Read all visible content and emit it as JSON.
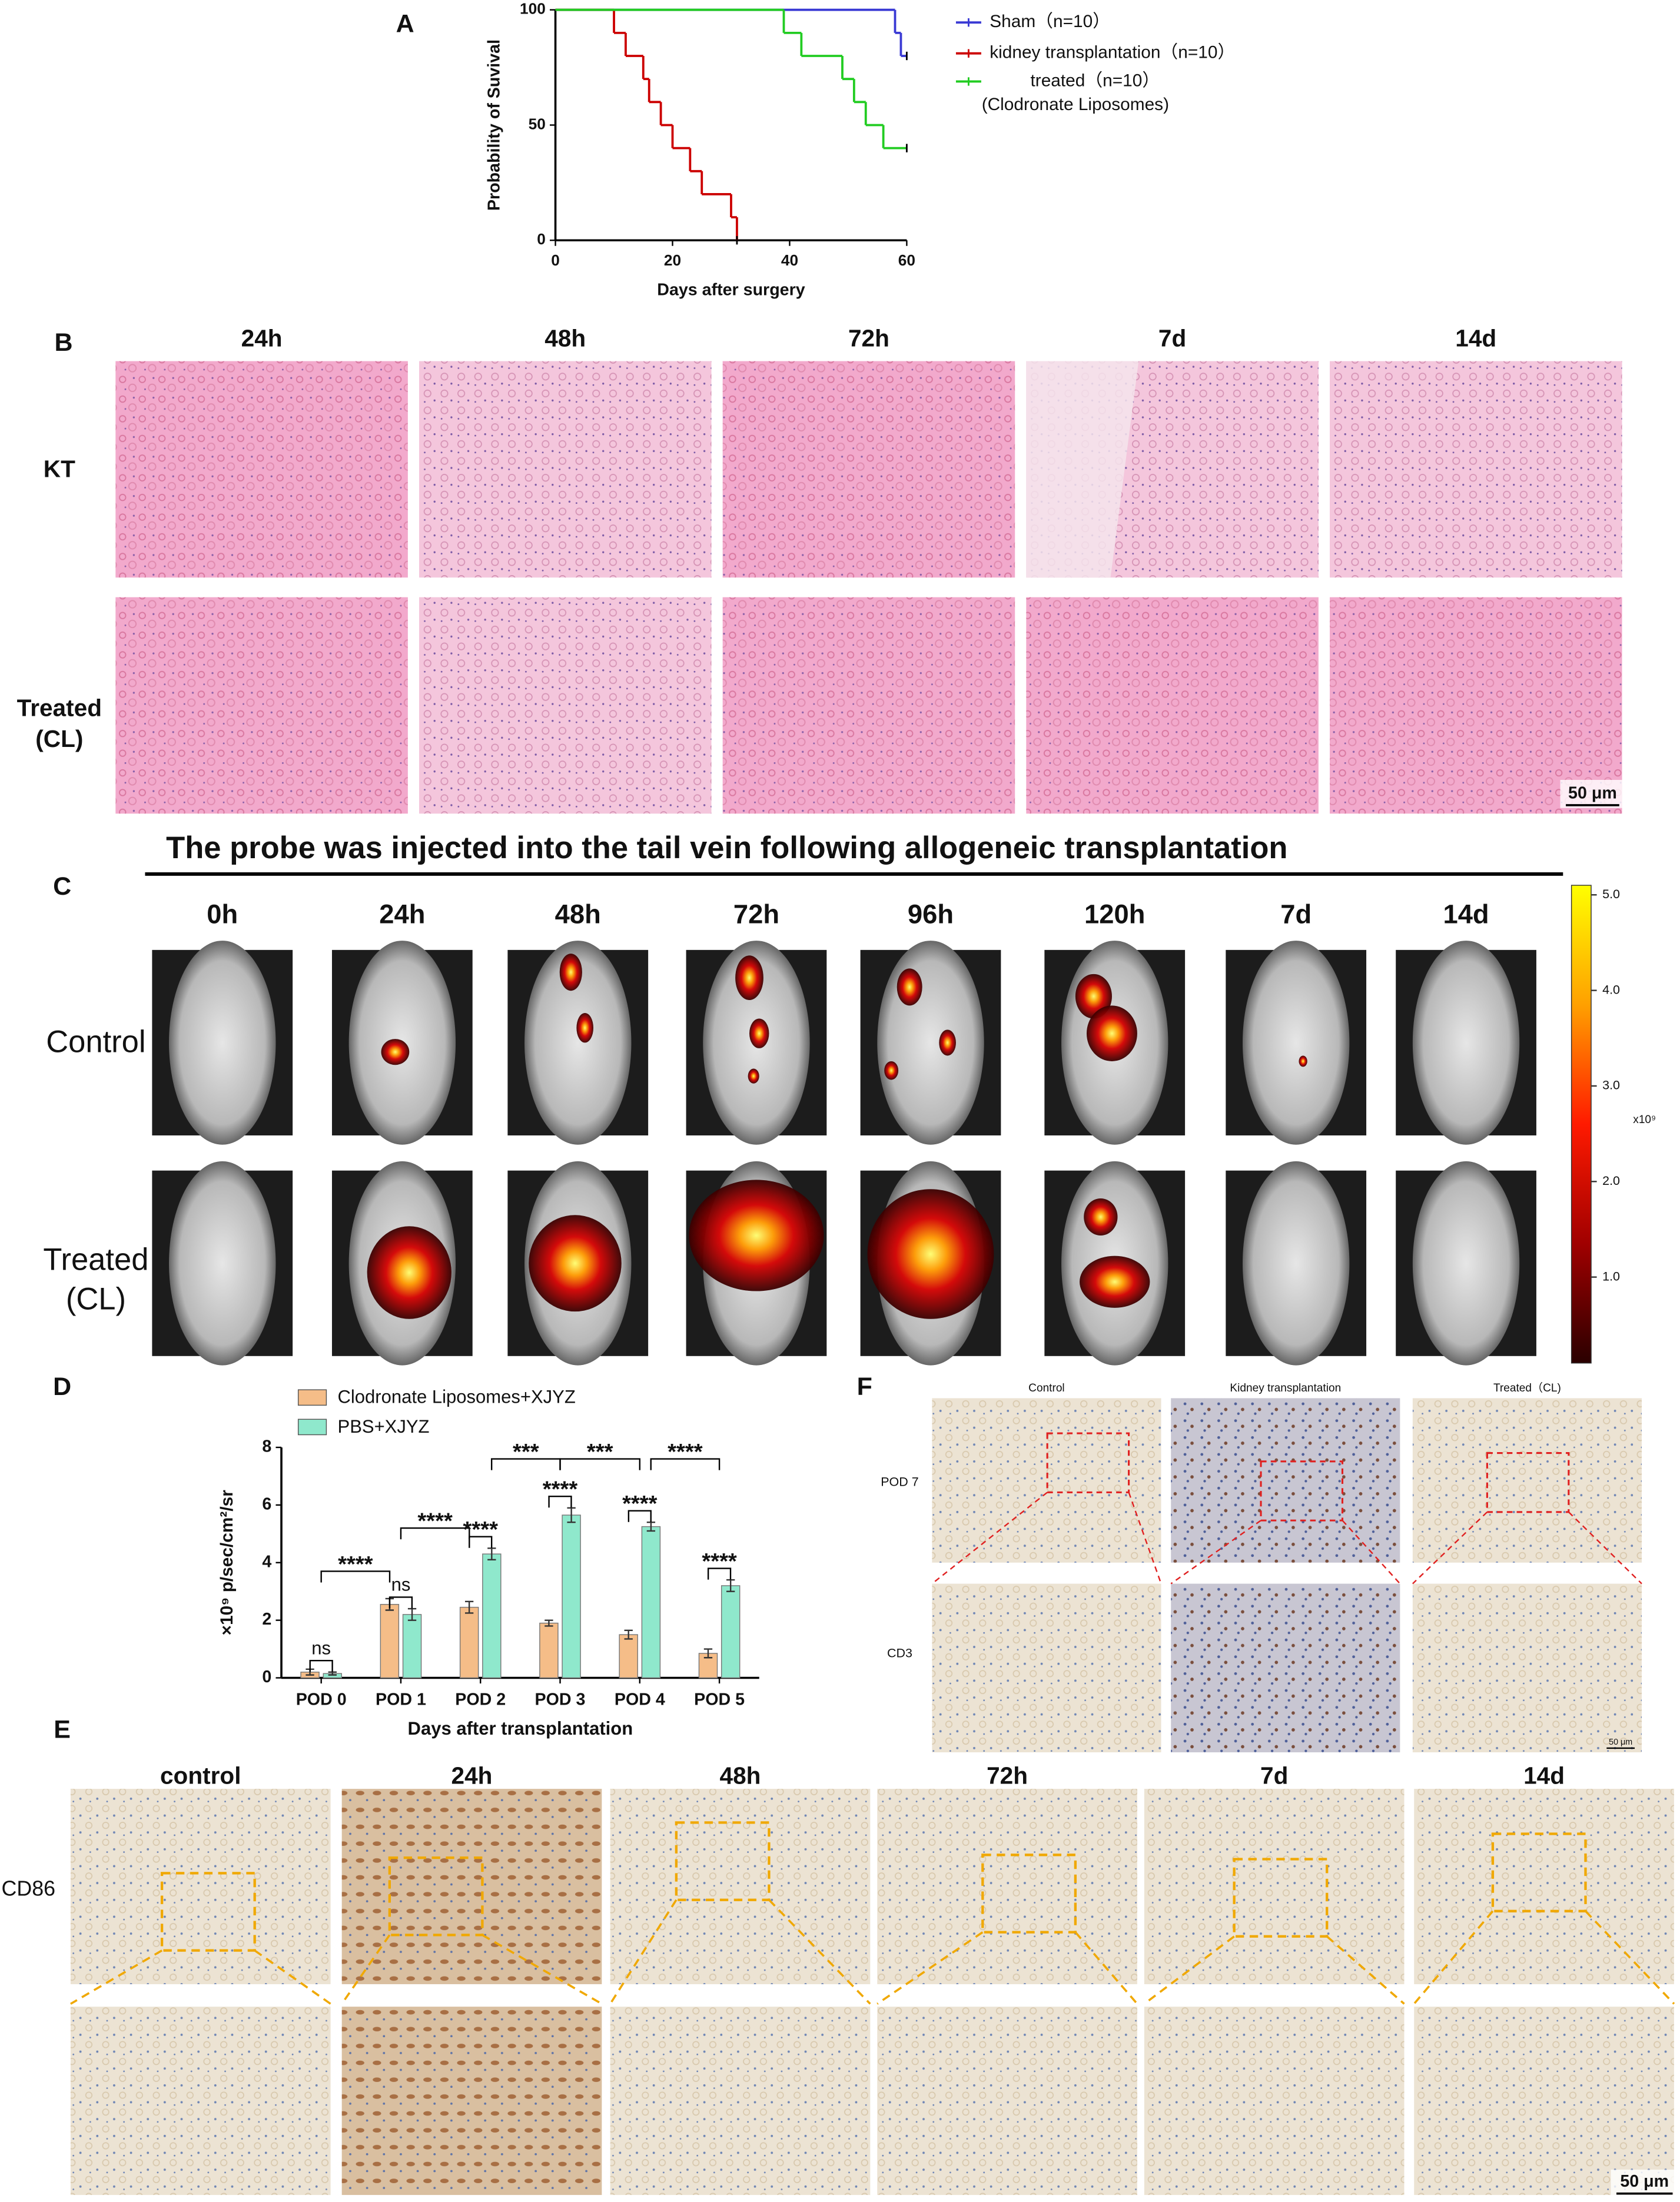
{
  "chart_data": [
    {
      "type": "step",
      "panel_label": "A",
      "xlabel": "Days after surgery",
      "ylabel": "Probability of Suvival",
      "xlim": [
        0,
        60
      ],
      "xticks": [
        0,
        20,
        40,
        60
      ],
      "ylim": [
        0,
        100
      ],
      "yticks": [
        0,
        50,
        100
      ],
      "legend_note": "(Clodronate Liposomes)",
      "series": [
        {
          "name": "Sham（n=10）",
          "color": "#3a3ad4",
          "x": [
            0,
            58,
            59,
            60
          ],
          "values": [
            100,
            90,
            80,
            80
          ]
        },
        {
          "name": "kidney transplantation（n=10）",
          "color": "#cc0000",
          "x": [
            0,
            10,
            12,
            15,
            16,
            18,
            20,
            23,
            25,
            30,
            31
          ],
          "values": [
            100,
            90,
            80,
            70,
            60,
            50,
            40,
            30,
            20,
            10,
            0
          ]
        },
        {
          "name": "treated（n=10）",
          "color": "#22cc22",
          "x": [
            0,
            39,
            42,
            49,
            51,
            53,
            56,
            60
          ],
          "values": [
            100,
            90,
            80,
            70,
            60,
            50,
            40,
            40
          ]
        }
      ]
    },
    {
      "type": "bar",
      "panel_label": "D",
      "xlabel": "Days after transplantation",
      "ylabel": "×10⁹ p/sec/cm²/sr",
      "categories": [
        "POD 0",
        "POD 1",
        "POD 2",
        "POD 3",
        "POD 4",
        "POD 5"
      ],
      "ylim": [
        0,
        8
      ],
      "yticks": [
        0,
        2,
        4,
        6,
        8
      ],
      "series": [
        {
          "name": "Clodronate Liposomes+XJYZ",
          "color": "#f5bd88",
          "values": [
            0.2,
            2.55,
            2.45,
            1.9,
            1.5,
            0.85
          ],
          "errors": [
            0.1,
            0.2,
            0.2,
            0.1,
            0.15,
            0.15
          ]
        },
        {
          "name": "PBS+XJYZ",
          "color": "#8fe8cc",
          "values": [
            0.15,
            2.2,
            4.3,
            5.65,
            5.25,
            3.2
          ],
          "errors": [
            0.05,
            0.2,
            0.2,
            0.25,
            0.15,
            0.2
          ]
        }
      ],
      "annotations": [
        "ns",
        "****",
        "ns",
        "****",
        "****",
        "***",
        "****",
        "***",
        "****",
        "****",
        "****"
      ]
    }
  ],
  "panel_b": {
    "letter": "B",
    "columns": [
      "24h",
      "48h",
      "72h",
      "7d",
      "14d"
    ],
    "rows": [
      [
        "KT"
      ],
      [
        "Treated",
        "(CL)"
      ]
    ],
    "scale_bar": "50 μm"
  },
  "panel_c": {
    "letter": "C",
    "title": "The probe was injected into the tail vein following allogeneic transplantation",
    "columns": [
      "0h",
      "24h",
      "48h",
      "72h",
      "96h",
      "120h",
      "7d",
      "14d"
    ],
    "rows": [
      [
        "Control"
      ],
      [
        "Treated",
        "(CL)"
      ]
    ],
    "colorbar": {
      "lim": [
        0.1,
        5.1
      ],
      "ticks": [
        {
          "value": 5,
          "label": "5.0"
        },
        {
          "value": 4,
          "label": "4.0"
        },
        {
          "value": 3,
          "label": "3.0"
        },
        {
          "value": 2,
          "label": "2.0"
        },
        {
          "value": 1,
          "label": "1.0"
        }
      ],
      "unit": "x10⁹"
    }
  },
  "panel_e": {
    "letter": "E",
    "columns": [
      "control",
      "24h",
      "48h",
      "72h",
      "7d",
      "14d"
    ],
    "row_label": "CD86",
    "scale_bar": "50 μm"
  },
  "panel_f": {
    "letter": "F",
    "columns": [
      "Control",
      "Kidney transplantation",
      "Treated（CL)"
    ],
    "rows": [
      "POD 7",
      "CD3"
    ],
    "scale_bar": "50 μm"
  }
}
